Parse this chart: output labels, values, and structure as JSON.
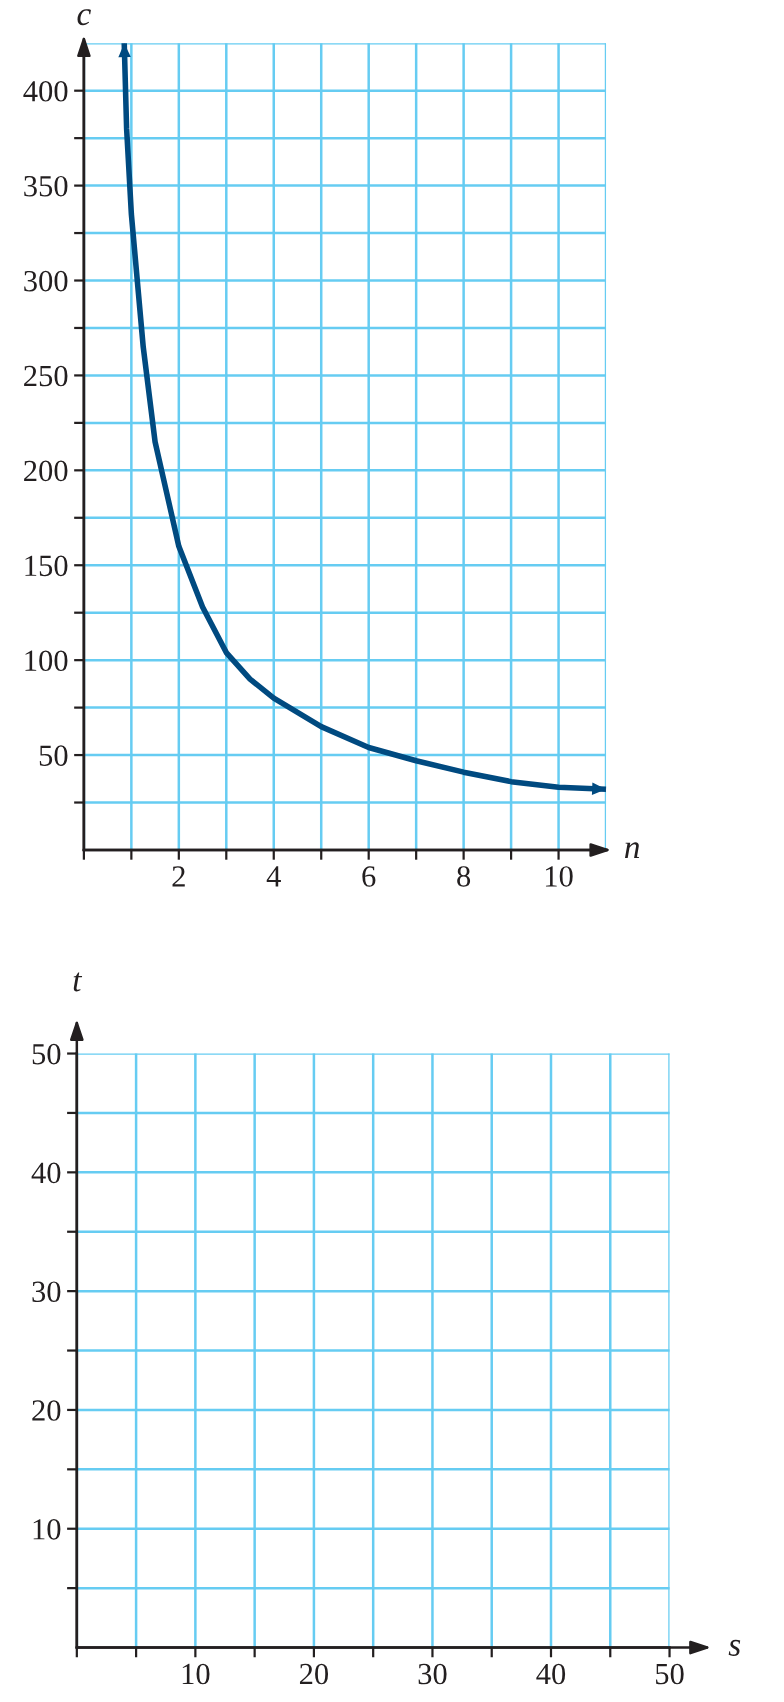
{
  "chart_data": [
    {
      "type": "line",
      "xlabel": "n",
      "ylabel": "c",
      "xlim": [
        0,
        11
      ],
      "ylim": [
        0,
        425
      ],
      "xticks": [
        {
          "value": 0,
          "label": null
        },
        {
          "value": 1,
          "label": null
        },
        2,
        {
          "value": 3,
          "label": null
        },
        4,
        {
          "value": 5,
          "label": null
        },
        6,
        {
          "value": 7,
          "label": null
        },
        8,
        {
          "value": 9,
          "label": null
        },
        10
      ],
      "yticks": [
        {
          "value": 25,
          "label": null
        },
        50,
        {
          "value": 75,
          "label": null
        },
        100,
        {
          "value": 125,
          "label": null
        },
        150,
        {
          "value": 175,
          "label": null
        },
        200,
        {
          "value": 225,
          "label": null
        },
        250,
        {
          "value": 275,
          "label": null
        },
        300,
        {
          "value": 325,
          "label": null
        },
        350,
        {
          "value": 375,
          "label": null
        },
        400
      ],
      "grid": true,
      "marker": "none",
      "line_style": "solid",
      "series": [
        {
          "color": "#004a80",
          "x": [
            0.85,
            0.9,
            1,
            1.25,
            1.5,
            2,
            2.5,
            3,
            3.5,
            4,
            5,
            6,
            7,
            8,
            9,
            10,
            11
          ],
          "values": [
            425,
            380,
            335,
            265,
            215,
            160,
            128,
            104,
            90,
            80,
            65,
            54,
            47,
            41,
            36,
            33,
            32
          ]
        }
      ]
    },
    {
      "type": "line",
      "xlabel": "s",
      "ylabel": "t",
      "xlim": [
        0,
        50
      ],
      "ylim": [
        0,
        50
      ],
      "xticks": [
        {
          "value": 0,
          "label": null
        },
        {
          "value": 5,
          "label": null
        },
        10,
        {
          "value": 15,
          "label": null
        },
        20,
        {
          "value": 25,
          "label": null
        },
        30,
        {
          "value": 35,
          "label": null
        },
        40,
        {
          "value": 45,
          "label": null
        },
        50
      ],
      "yticks": [
        {
          "value": 5,
          "label": null
        },
        10,
        {
          "value": 15,
          "label": null
        },
        20,
        {
          "value": 25,
          "label": null
        },
        30,
        {
          "value": 35,
          "label": null
        },
        40,
        {
          "value": 45,
          "label": null
        },
        50
      ],
      "grid": true
    }
  ]
}
